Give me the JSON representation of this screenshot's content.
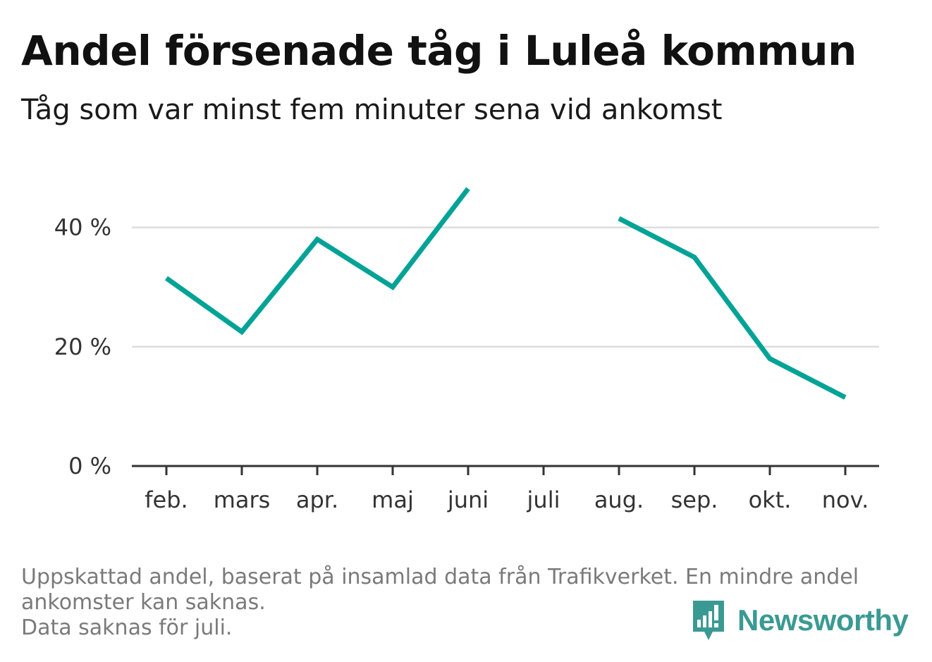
{
  "header": {
    "title": "Andel försenade tåg i Luleå kommun",
    "subtitle": "Tåg som var minst fem minuter sena vid ankomst"
  },
  "chart_data": {
    "type": "line",
    "categories": [
      "feb.",
      "mars",
      "apr.",
      "maj",
      "juni",
      "juli",
      "aug.",
      "sep.",
      "okt.",
      "nov."
    ],
    "series": [
      {
        "values": [
          31.5,
          22.5,
          38,
          30,
          46.5,
          null,
          41.5,
          35,
          18,
          11.5
        ]
      }
    ],
    "yticks": [
      0,
      20,
      40
    ],
    "ytick_labels": [
      "0 %",
      "20 %",
      "40 %"
    ],
    "ylim": [
      0,
      50
    ],
    "grid": true,
    "line_color": "#00a396"
  },
  "footnote": {
    "line1": "Uppskattad andel, baserat på insamlad data från Trafikverket. En mindre andel",
    "line2": "ankomster kan saknas.",
    "line3": "Data saknas för juli."
  },
  "brand": {
    "name": "Newsworthy",
    "icon": "newsworthy-logo-icon",
    "color": "#3a9a93"
  }
}
